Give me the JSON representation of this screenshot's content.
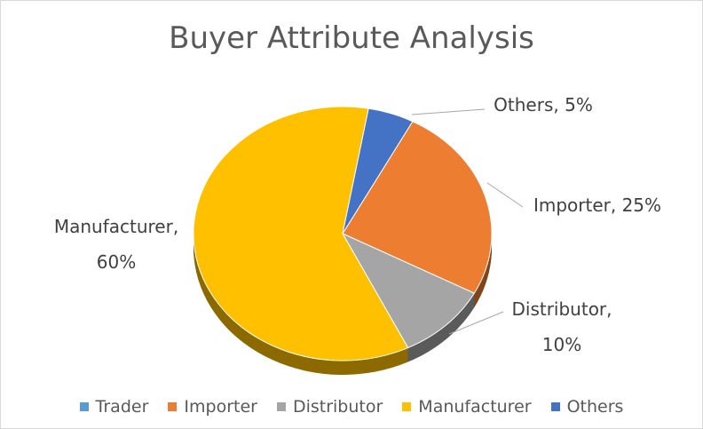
{
  "chart_data": {
    "type": "pie",
    "title": "Buyer Attribute Analysis",
    "categories": [
      "Trader",
      "Importer",
      "Distributor",
      "Manufacturer",
      "Others"
    ],
    "values": [
      0,
      25,
      10,
      60,
      5
    ],
    "value_labels": [
      null,
      "Importer, 25%",
      "Distributor, 10%",
      "Manufacturer, 60%",
      "Others, 5%"
    ],
    "colors": [
      "#5b9bd5",
      "#ed7d31",
      "#a5a5a5",
      "#ffc000",
      "#4472c4"
    ],
    "legend": "bottom"
  }
}
